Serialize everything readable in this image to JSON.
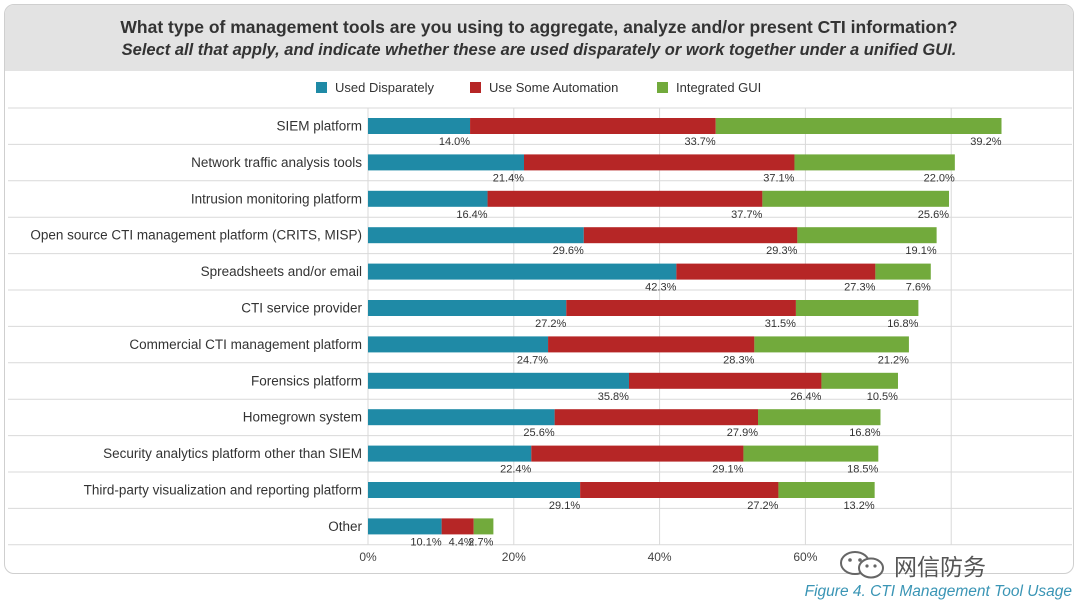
{
  "header": {
    "title": "What type of management tools are you using to aggregate, analyze and/or present CTI information?",
    "subtitle": "Select all that apply, and indicate whether these are used disparately or work together under a unified GUI."
  },
  "caption": "Figure 4. CTI Management Tool Usage",
  "watermark": {
    "text": "网信防务",
    "icon": "wechat-icon"
  },
  "colors": {
    "used_disparately": "#1f8aa6",
    "use_some_automation": "#b62626",
    "integrated_gui": "#72aa3c",
    "header_bg": "#e3e3e3",
    "grid": "#d9d9d9"
  },
  "chart_data": {
    "type": "bar",
    "orientation": "horizontal",
    "stacked": true,
    "title": "What type of management tools are you using to aggregate, analyze and/or present CTI information?",
    "subtitle": "Select all that apply, and indicate whether these are used disparately or work together under a unified GUI.",
    "categories": [
      "SIEM platform",
      "Network traffic analysis tools",
      "Intrusion monitoring platform",
      "Open source CTI management platform (CRITS, MISP)",
      "Spreadsheets and/or email",
      "CTI service provider",
      "Commercial CTI management platform",
      "Forensics platform",
      "Homegrown system",
      "Security analytics platform other than SIEM",
      "Third-party visualization and reporting platform",
      "Other"
    ],
    "series": [
      {
        "name": "Used Disparately",
        "color": "#1f8aa6",
        "values": [
          14.0,
          21.4,
          16.4,
          29.6,
          42.3,
          27.2,
          24.7,
          35.8,
          25.6,
          22.4,
          29.1,
          10.1
        ],
        "labels": [
          "14.0%",
          "21.4%",
          "16.4%",
          "29.6%",
          "42.3%",
          "27.2%",
          "24.7%",
          "35.8%",
          "25.6%",
          "22.4%",
          "29.1%",
          "10.1%"
        ]
      },
      {
        "name": "Use Some Automation",
        "color": "#b62626",
        "values": [
          33.7,
          37.1,
          37.7,
          29.3,
          27.3,
          31.5,
          28.3,
          26.4,
          27.9,
          29.1,
          27.2,
          4.4
        ],
        "labels": [
          "33.7%",
          "37.1%",
          "37.7%",
          "29.3%",
          "27.3%",
          "31.5%",
          "28.3%",
          "26.4%",
          "27.9%",
          "29.1%",
          "27.2%",
          "4.4%"
        ]
      },
      {
        "name": "Integrated GUI",
        "color": "#72aa3c",
        "values": [
          39.2,
          22.0,
          25.6,
          19.1,
          7.6,
          16.8,
          21.2,
          10.5,
          16.8,
          18.5,
          13.2,
          2.7
        ],
        "labels": [
          "39.2%",
          "22.0%",
          "25.6%",
          "19.1%",
          "7.6%",
          "16.8%",
          "21.2%",
          "10.5%",
          "16.8%",
          "18.5%",
          "13.2%",
          "2.7%"
        ]
      }
    ],
    "xlim": [
      0,
      100
    ],
    "xticks": [
      "0%",
      "20%",
      "40%",
      "60%"
    ],
    "xtick_values": [
      0,
      20,
      40,
      60
    ],
    "grid": true,
    "legend_position": "top"
  }
}
